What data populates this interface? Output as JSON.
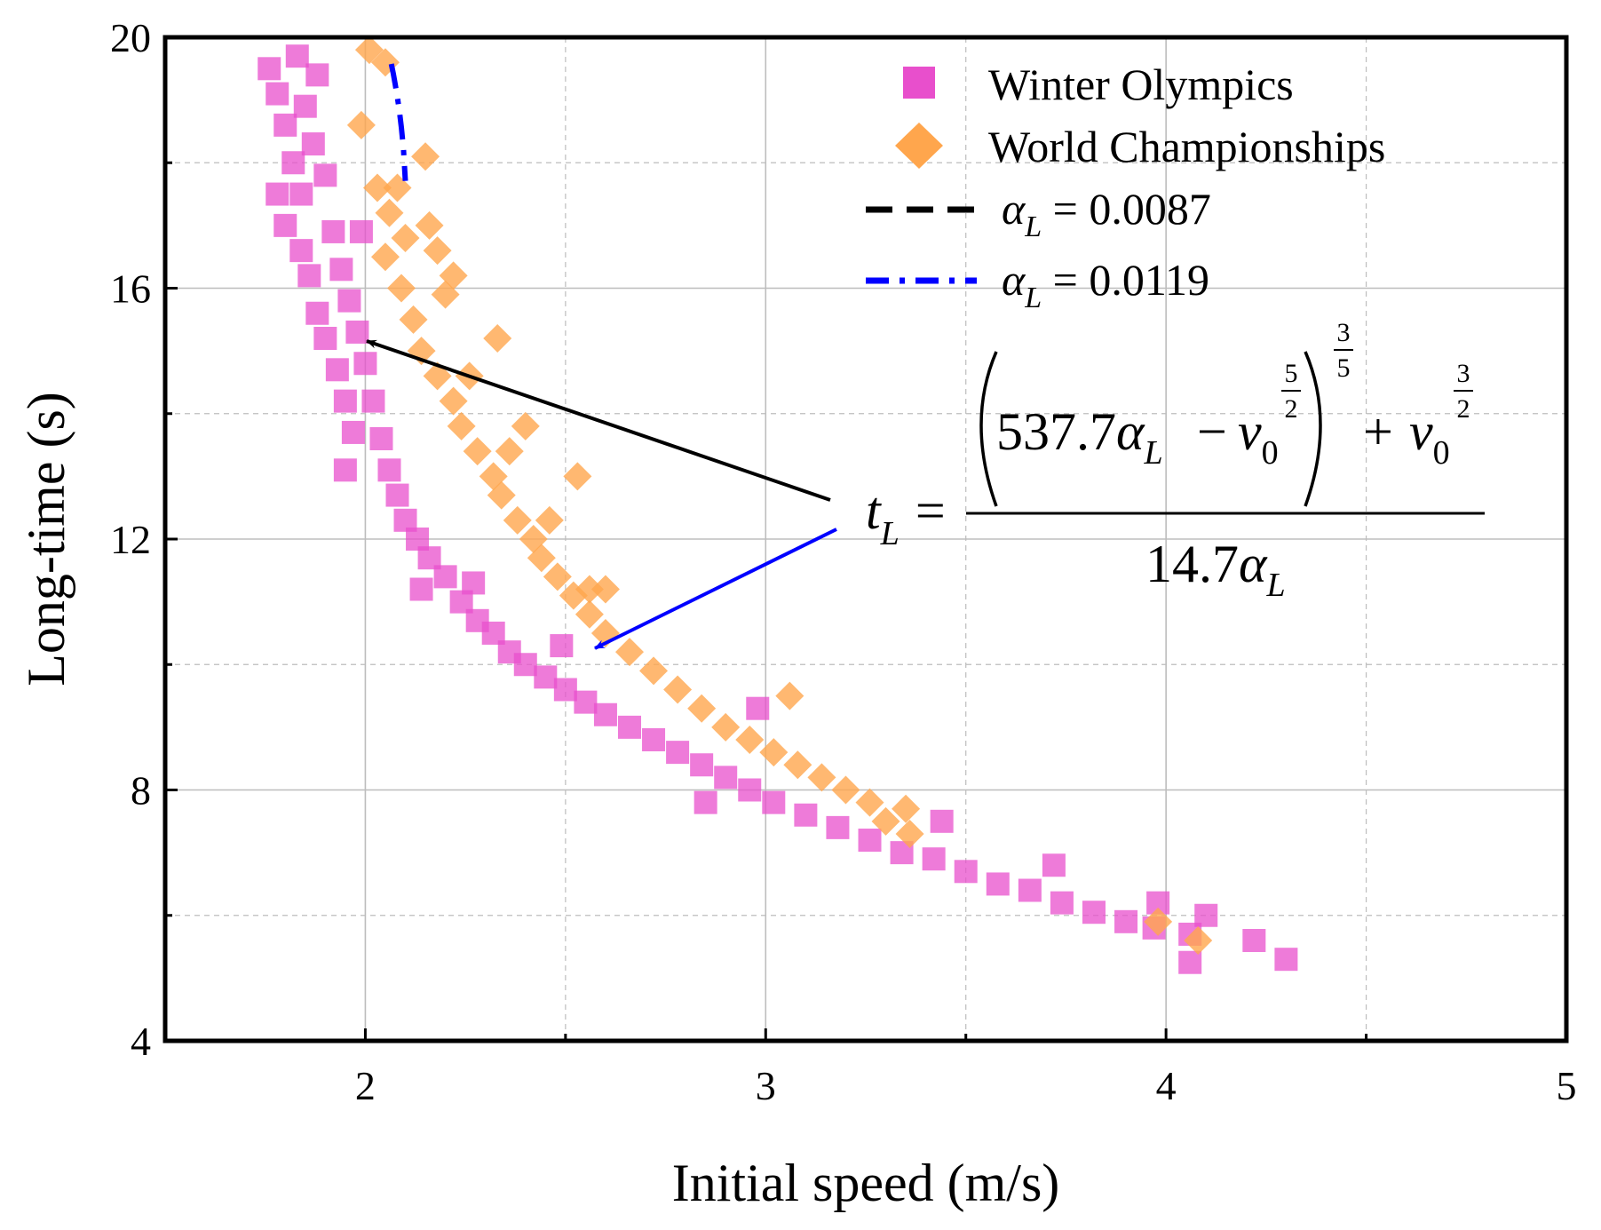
{
  "chart_data": {
    "type": "scatter",
    "xlabel": "Initial speed (m/s)",
    "ylabel": "Long-time (s)",
    "xlim": [
      1.5,
      5
    ],
    "ylim": [
      4,
      20
    ],
    "x_ticks": [
      2,
      3,
      4,
      5
    ],
    "y_ticks": [
      4,
      8,
      12,
      16,
      20
    ],
    "grid": true,
    "legend_position": "top-right",
    "series": [
      {
        "name": "Winter Olympics",
        "kind": "scatter",
        "marker": "square",
        "color": "#e84fcc",
        "points": [
          [
            1.76,
            19.5
          ],
          [
            1.78,
            19.1
          ],
          [
            1.8,
            18.6
          ],
          [
            1.82,
            18.0
          ],
          [
            1.84,
            17.5
          ],
          [
            1.83,
            19.7
          ],
          [
            1.85,
            18.9
          ],
          [
            1.87,
            18.3
          ],
          [
            1.88,
            19.4
          ],
          [
            1.9,
            17.8
          ],
          [
            1.78,
            17.5
          ],
          [
            1.8,
            17.0
          ],
          [
            1.84,
            16.6
          ],
          [
            1.86,
            16.2
          ],
          [
            1.88,
            15.6
          ],
          [
            1.9,
            15.2
          ],
          [
            1.93,
            14.7
          ],
          [
            1.95,
            14.2
          ],
          [
            1.97,
            13.7
          ],
          [
            1.92,
            16.9
          ],
          [
            1.94,
            16.3
          ],
          [
            1.96,
            15.8
          ],
          [
            1.98,
            15.3
          ],
          [
            2.0,
            14.8
          ],
          [
            1.99,
            16.9
          ],
          [
            2.02,
            14.2
          ],
          [
            2.04,
            13.6
          ],
          [
            2.06,
            13.1
          ],
          [
            2.08,
            12.7
          ],
          [
            1.95,
            13.1
          ],
          [
            2.1,
            12.3
          ],
          [
            2.13,
            12.0
          ],
          [
            2.16,
            11.7
          ],
          [
            2.2,
            11.4
          ],
          [
            2.14,
            11.2
          ],
          [
            2.24,
            11.0
          ],
          [
            2.28,
            10.7
          ],
          [
            2.32,
            10.5
          ],
          [
            2.36,
            10.2
          ],
          [
            2.27,
            11.3
          ],
          [
            2.4,
            10.0
          ],
          [
            2.45,
            9.8
          ],
          [
            2.5,
            9.6
          ],
          [
            2.55,
            9.4
          ],
          [
            2.49,
            10.3
          ],
          [
            2.6,
            9.2
          ],
          [
            2.66,
            9.0
          ],
          [
            2.72,
            8.8
          ],
          [
            2.78,
            8.6
          ],
          [
            2.98,
            9.3
          ],
          [
            2.84,
            8.4
          ],
          [
            2.9,
            8.2
          ],
          [
            2.96,
            8.0
          ],
          [
            3.02,
            7.8
          ],
          [
            2.85,
            7.8
          ],
          [
            3.1,
            7.6
          ],
          [
            3.18,
            7.4
          ],
          [
            3.26,
            7.2
          ],
          [
            3.34,
            7.0
          ],
          [
            3.44,
            7.5
          ],
          [
            3.42,
            6.9
          ],
          [
            3.5,
            6.7
          ],
          [
            3.58,
            6.5
          ],
          [
            3.66,
            6.4
          ],
          [
            3.72,
            6.8
          ],
          [
            3.74,
            6.2
          ],
          [
            3.82,
            6.05
          ],
          [
            3.9,
            5.9
          ],
          [
            3.97,
            5.8
          ],
          [
            3.98,
            6.2
          ],
          [
            4.06,
            5.25
          ],
          [
            4.1,
            6.0
          ],
          [
            4.06,
            5.7
          ],
          [
            4.22,
            5.6
          ],
          [
            4.3,
            5.3
          ]
        ]
      },
      {
        "name": "World Championships",
        "kind": "scatter",
        "marker": "diamond",
        "color": "#ffa64d",
        "points": [
          [
            2.01,
            19.8
          ],
          [
            2.05,
            19.6
          ],
          [
            1.99,
            18.6
          ],
          [
            2.15,
            18.1
          ],
          [
            2.03,
            17.6
          ],
          [
            2.06,
            17.2
          ],
          [
            2.08,
            17.6
          ],
          [
            2.1,
            16.8
          ],
          [
            2.16,
            17.0
          ],
          [
            2.18,
            16.6
          ],
          [
            2.05,
            16.5
          ],
          [
            2.09,
            16.0
          ],
          [
            2.12,
            15.5
          ],
          [
            2.2,
            15.9
          ],
          [
            2.22,
            16.2
          ],
          [
            2.14,
            15.0
          ],
          [
            2.18,
            14.6
          ],
          [
            2.22,
            14.2
          ],
          [
            2.26,
            14.6
          ],
          [
            2.33,
            15.2
          ],
          [
            2.24,
            13.8
          ],
          [
            2.28,
            13.4
          ],
          [
            2.32,
            13.0
          ],
          [
            2.36,
            13.4
          ],
          [
            2.4,
            13.8
          ],
          [
            2.34,
            12.7
          ],
          [
            2.38,
            12.3
          ],
          [
            2.42,
            12.0
          ],
          [
            2.46,
            12.3
          ],
          [
            2.53,
            13.0
          ],
          [
            2.44,
            11.7
          ],
          [
            2.48,
            11.4
          ],
          [
            2.52,
            11.1
          ],
          [
            2.56,
            11.2
          ],
          [
            2.6,
            11.2
          ],
          [
            2.56,
            10.8
          ],
          [
            2.6,
            10.5
          ],
          [
            2.66,
            10.2
          ],
          [
            2.72,
            9.9
          ],
          [
            2.78,
            9.6
          ],
          [
            2.84,
            9.3
          ],
          [
            2.9,
            9.0
          ],
          [
            2.96,
            8.8
          ],
          [
            3.02,
            8.6
          ],
          [
            3.06,
            9.5
          ],
          [
            3.08,
            8.4
          ],
          [
            3.14,
            8.2
          ],
          [
            3.2,
            8.0
          ],
          [
            3.26,
            7.8
          ],
          [
            3.35,
            7.7
          ],
          [
            3.3,
            7.5
          ],
          [
            3.36,
            7.3
          ],
          [
            3.98,
            5.9
          ],
          [
            4.08,
            5.6
          ]
        ]
      },
      {
        "name": "α_L = 0.0087",
        "kind": "line",
        "style": "dashed",
        "color": "#000000",
        "alpha_L": 0.0087
      },
      {
        "name": "α_L = 0.0119",
        "kind": "line",
        "style": "dash-dot",
        "color": "#0000ff",
        "alpha_L": 0.0119
      }
    ],
    "legend": [
      {
        "label": "Winter Olympics",
        "marker": "square",
        "color": "#e84fcc"
      },
      {
        "label": "World Championships",
        "marker": "diamond",
        "color": "#ffa64d"
      },
      {
        "symbol": "α",
        "sub": "L",
        "rest": " = 0.0087",
        "style": "dashed",
        "color": "#000000"
      },
      {
        "symbol": "α",
        "sub": "L",
        "rest": " = 0.0119",
        "style": "dash-dot",
        "color": "#0000ff"
      }
    ],
    "annotation": {
      "lhs": "t",
      "lhs_sub": "L",
      "equals": "=",
      "num_coeff": "537.7",
      "alpha": "α",
      "alpha_sub": "L",
      "minus": "−",
      "v": "v",
      "v_sub": "0",
      "exp_5": "5",
      "exp_2": "2",
      "exp_3": "3",
      "plus": "+",
      "den_coeff": "14.7",
      "arrows": [
        {
          "color": "#000000",
          "x": 2.0,
          "y": 15.3
        },
        {
          "color": "#0000ff",
          "x": 2.56,
          "y": 10.3
        }
      ]
    }
  }
}
